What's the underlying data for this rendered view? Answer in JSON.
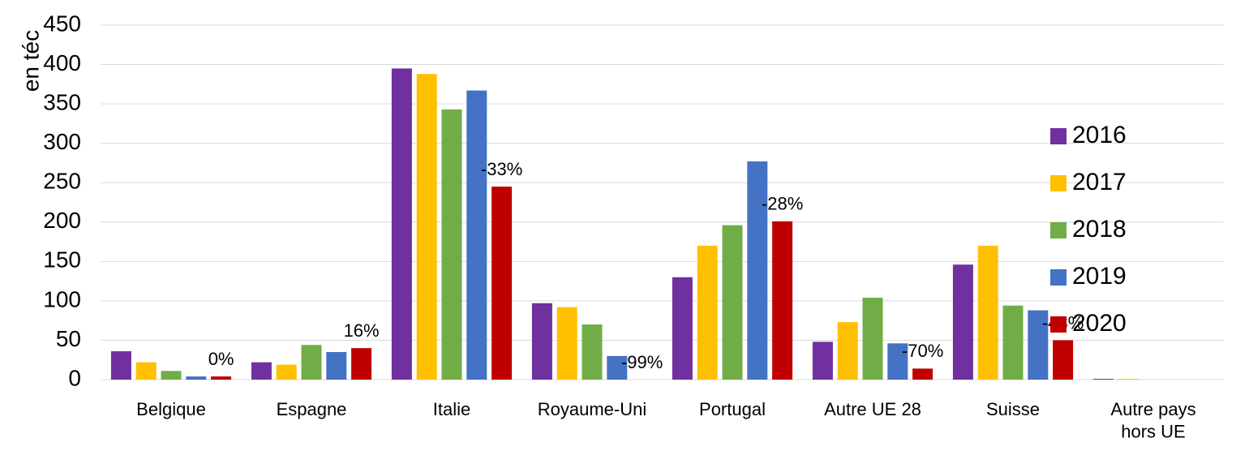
{
  "chart_data": {
    "type": "bar",
    "y_label": "en téc",
    "categories": [
      "Belgique",
      "Espagne",
      "Italie",
      "Royaume-Uni",
      "Portugal",
      "Autre UE 28",
      "Suisse",
      "Autre pays\nhors UE"
    ],
    "series": [
      {
        "name": "2016",
        "color": "#7030a0",
        "values": [
          36,
          22,
          395,
          97,
          130,
          48,
          146,
          1
        ]
      },
      {
        "name": "2017",
        "color": "#ffc000",
        "values": [
          22,
          19,
          388,
          92,
          170,
          73,
          170,
          1
        ]
      },
      {
        "name": "2018",
        "color": "#70ad47",
        "values": [
          11,
          44,
          343,
          70,
          196,
          104,
          94,
          0
        ]
      },
      {
        "name": "2019",
        "color": "#4472c4",
        "values": [
          4,
          35,
          367,
          30,
          277,
          46,
          88,
          0
        ]
      },
      {
        "name": "2020",
        "color": "#c00000",
        "values": [
          4,
          40,
          245,
          0,
          201,
          14,
          50,
          0
        ]
      }
    ],
    "annotations": [
      "0%",
      "16%",
      "-33%",
      "-99%",
      "-28%",
      "-70%",
      "-43%",
      null
    ],
    "ylim": [
      0,
      450
    ],
    "yticks": [
      0,
      50,
      100,
      150,
      200,
      250,
      300,
      350,
      400,
      450
    ],
    "grid": true,
    "legend": "right"
  }
}
